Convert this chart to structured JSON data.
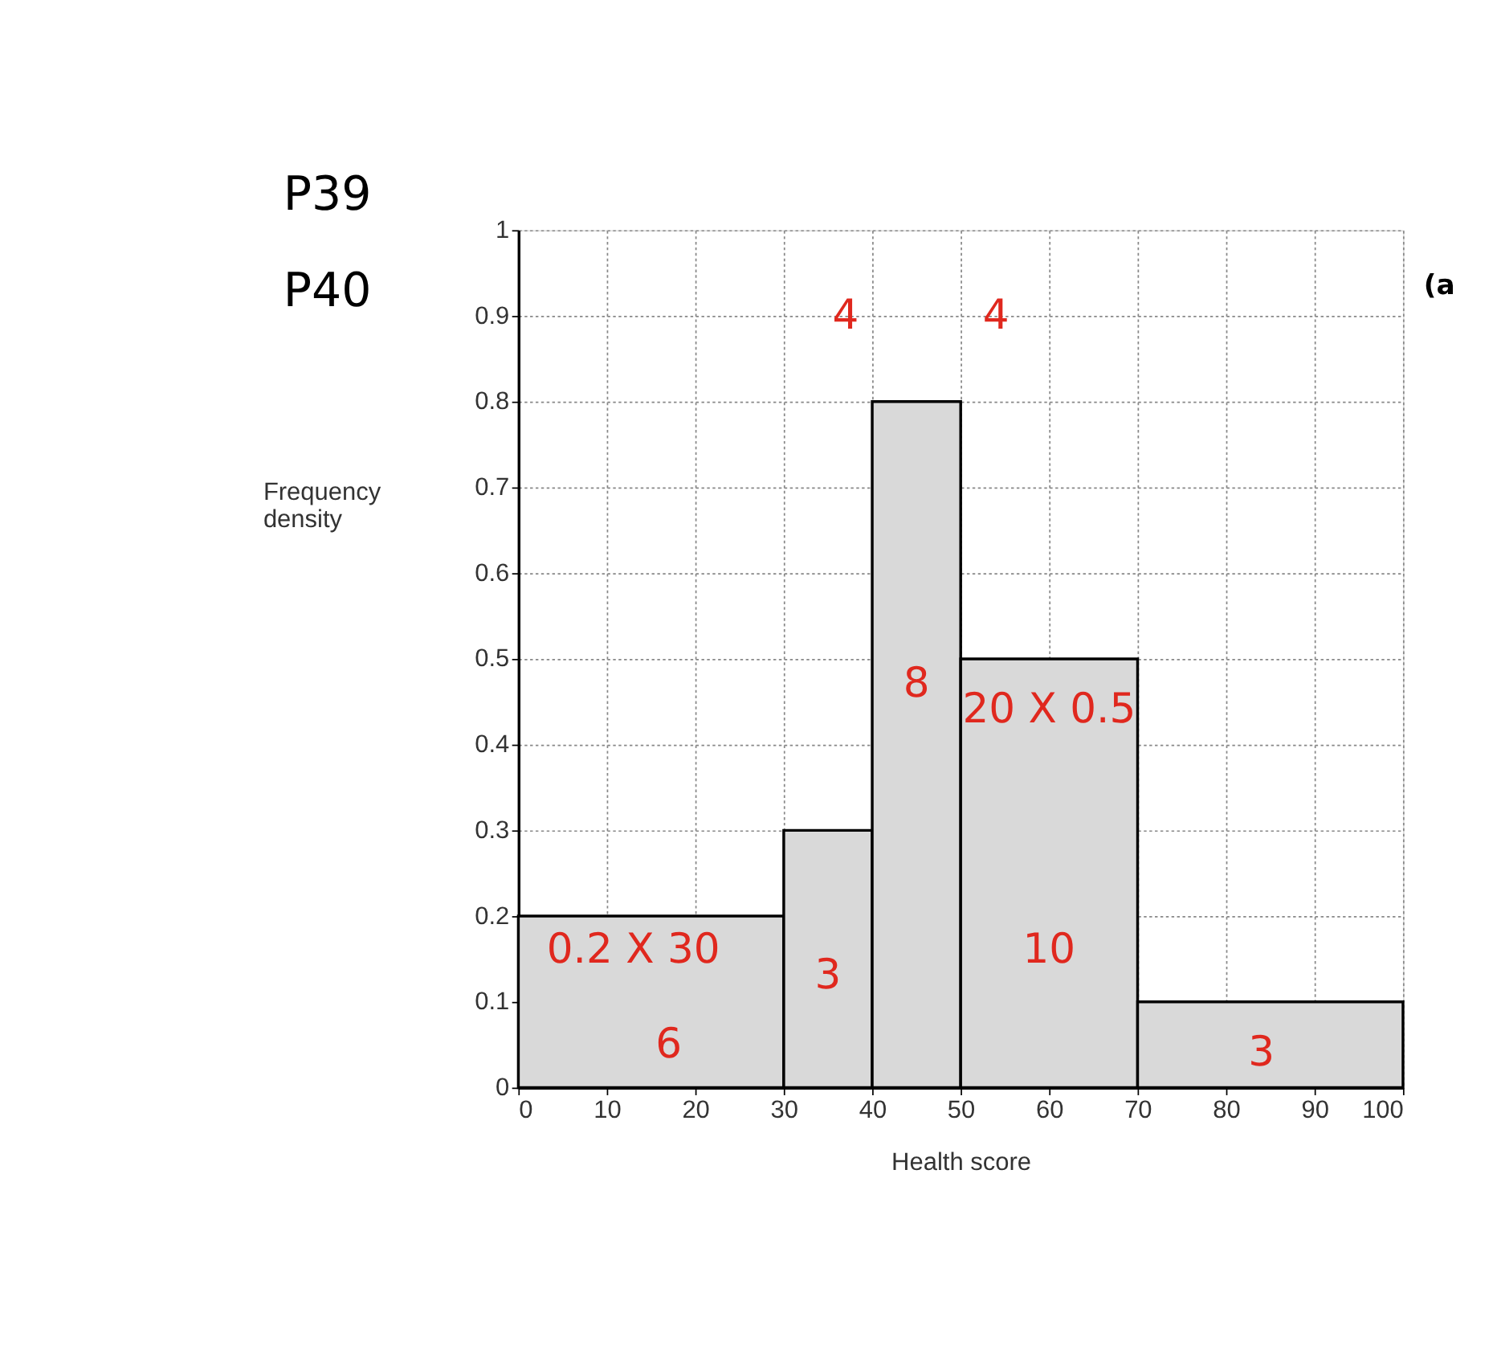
{
  "chart_data": {
    "type": "histogram",
    "bins": [
      0,
      30,
      40,
      50,
      70,
      100
    ],
    "values": [
      0.2,
      0.3,
      0.8,
      0.5,
      0.1
    ],
    "color": "#d9d9d9",
    "xlabel": "Health score",
    "ylabel": "Frequency density",
    "xlim": [
      0,
      100
    ],
    "xticks": [
      0,
      10,
      20,
      30,
      40,
      50,
      60,
      70,
      80,
      90,
      100
    ],
    "ylim": [
      0,
      1
    ],
    "yticks": [
      0,
      0.1,
      0.2,
      0.3,
      0.4,
      0.5,
      0.6,
      0.7,
      0.8,
      0.9,
      1
    ],
    "grid": true,
    "annotations": [
      "P39",
      "P40",
      "(a",
      "4",
      "4",
      "8",
      "20 X 0.5",
      "0.2 X 30",
      "6",
      "3",
      "10",
      "3"
    ]
  }
}
